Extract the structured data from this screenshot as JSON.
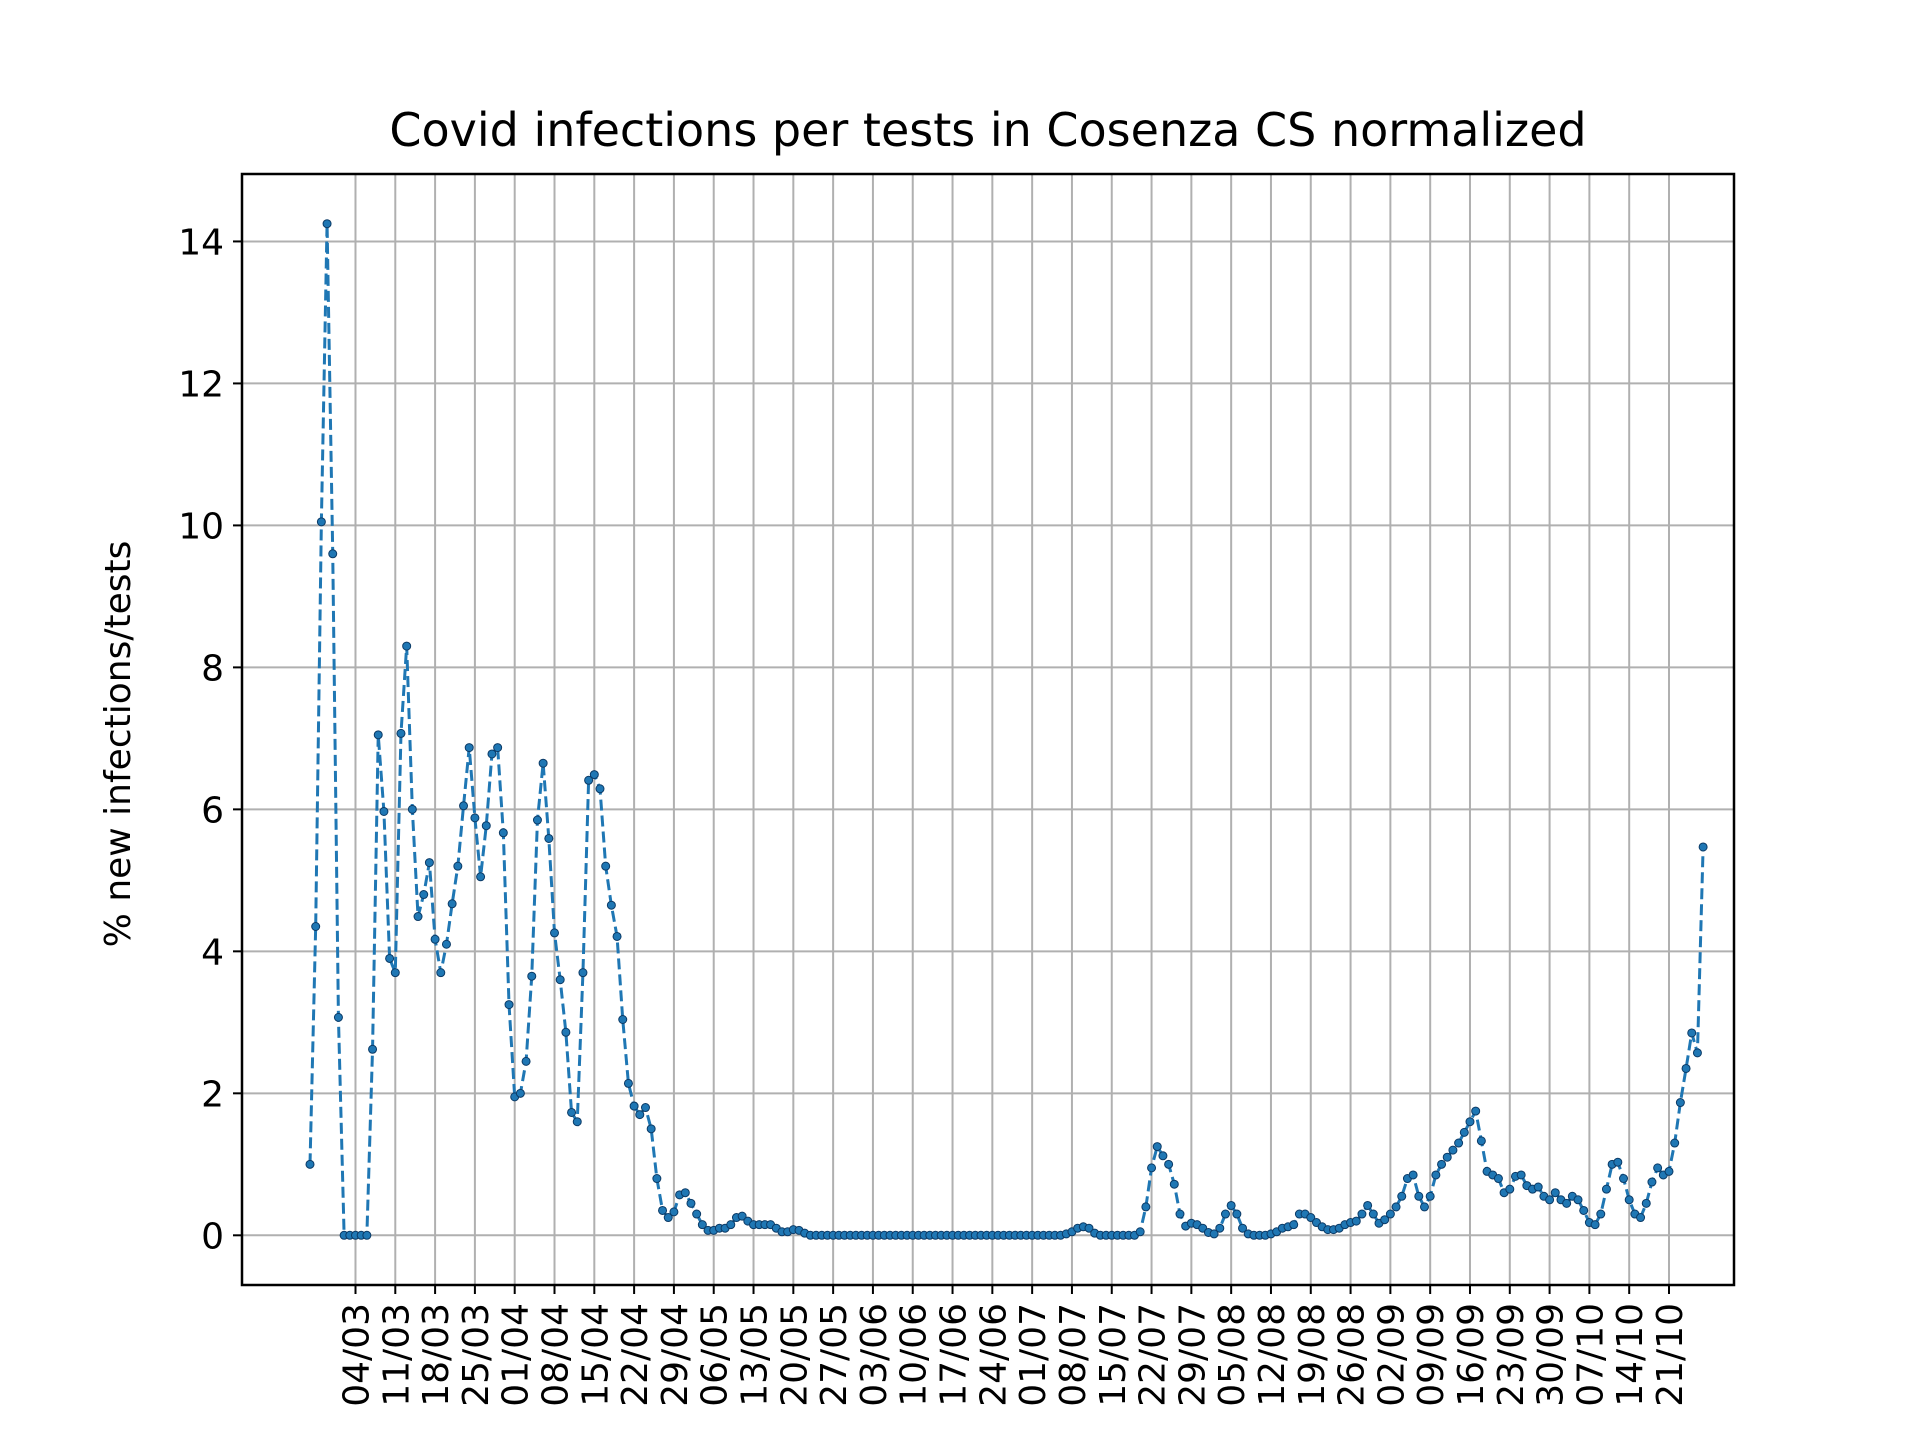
{
  "chart_data": {
    "type": "line",
    "title": "Covid infections per tests in Cosenza CS normalized",
    "xlabel": "",
    "ylabel": "% new infections/tests",
    "ylim": [
      -0.7,
      14.95
    ],
    "yticks": [
      0,
      2,
      4,
      6,
      8,
      10,
      12,
      14
    ],
    "grid": true,
    "legend": "none",
    "colors": {
      "series": "#1f77b4",
      "grid": "#b0b0b0"
    },
    "x_tick_labels": [
      "04/03",
      "11/03",
      "18/03",
      "25/03",
      "01/04",
      "08/04",
      "15/04",
      "22/04",
      "29/04",
      "06/05",
      "13/05",
      "20/05",
      "27/05",
      "03/06",
      "10/06",
      "17/06",
      "24/06",
      "01/07",
      "08/07",
      "15/07",
      "22/07",
      "29/07",
      "05/08",
      "12/08",
      "19/08",
      "26/08",
      "02/09",
      "09/09",
      "16/09",
      "23/09",
      "30/09",
      "07/10",
      "14/10",
      "21/10"
    ],
    "series": [
      {
        "start_date": "2020-02-25",
        "values": [
          1.0,
          4.35,
          10.05,
          14.25,
          9.6,
          3.07,
          0,
          0,
          0,
          0,
          0,
          2.62,
          7.05,
          5.97,
          3.9,
          3.7,
          7.07,
          8.3,
          6.0,
          4.49,
          4.8,
          5.25,
          4.17,
          3.7,
          4.1,
          4.67,
          5.2,
          6.05,
          6.87,
          5.88,
          5.05,
          5.77,
          6.78,
          6.87,
          5.67,
          3.25,
          1.95,
          2.0,
          2.45,
          3.65,
          5.85,
          6.65,
          5.59,
          4.26,
          3.6,
          2.86,
          1.73,
          1.6,
          3.7,
          6.41,
          6.49,
          6.29,
          5.2,
          4.65,
          4.21,
          3.04,
          2.14,
          1.82,
          1.7,
          1.8,
          1.5,
          0.8,
          0.35,
          0.25,
          0.33,
          0.57,
          0.6,
          0.45,
          0.3,
          0.15,
          0.07,
          0.07,
          0.1,
          0.1,
          0.15,
          0.25,
          0.27,
          0.2,
          0.15,
          0.15,
          0.15,
          0.15,
          0.1,
          0.05,
          0.05,
          0.08,
          0.07,
          0.03,
          0.0,
          0.0,
          0.0,
          0.0,
          0.0,
          0.0,
          0.0,
          0.0,
          0.0,
          0.0,
          0.0,
          0.0,
          0.0,
          0.0,
          0.0,
          0.0,
          0.0,
          0.0,
          0.0,
          0.0,
          0.0,
          0.0,
          0.0,
          0.0,
          0.0,
          0.0,
          0.0,
          0.0,
          0.0,
          0.0,
          0.0,
          0.0,
          0.0,
          0.0,
          0.0,
          0.0,
          0.0,
          0.0,
          0.0,
          0.0,
          0.0,
          0.0,
          0.0,
          0.0,
          0.0,
          0.02,
          0.05,
          0.1,
          0.12,
          0.1,
          0.03,
          0.0,
          0.0,
          0.0,
          0.0,
          0.0,
          0.0,
          0.0,
          0.05,
          0.4,
          0.95,
          1.25,
          1.12,
          1.0,
          0.72,
          0.3,
          0.13,
          0.17,
          0.15,
          0.1,
          0.04,
          0.02,
          0.1,
          0.3,
          0.42,
          0.3,
          0.1,
          0.02,
          0.0,
          0.0,
          0.0,
          0.02,
          0.05,
          0.1,
          0.12,
          0.15,
          0.3,
          0.3,
          0.25,
          0.18,
          0.12,
          0.08,
          0.08,
          0.1,
          0.15,
          0.18,
          0.2,
          0.3,
          0.42,
          0.3,
          0.17,
          0.22,
          0.3,
          0.4,
          0.55,
          0.8,
          0.85,
          0.55,
          0.4,
          0.55,
          0.85,
          1.0,
          1.1,
          1.2,
          1.3,
          1.45,
          1.6,
          1.75,
          1.33,
          0.9,
          0.85,
          0.8,
          0.6,
          0.65,
          0.83,
          0.85,
          0.7,
          0.65,
          0.68,
          0.55,
          0.5,
          0.6,
          0.5,
          0.45,
          0.55,
          0.5,
          0.35,
          0.18,
          0.15,
          0.3,
          0.65,
          1.0,
          1.03,
          0.8,
          0.5,
          0.3,
          0.25,
          0.45,
          0.75,
          0.95,
          0.85,
          0.9,
          1.3,
          1.87,
          2.35,
          2.85,
          2.57,
          5.47
        ]
      }
    ]
  }
}
